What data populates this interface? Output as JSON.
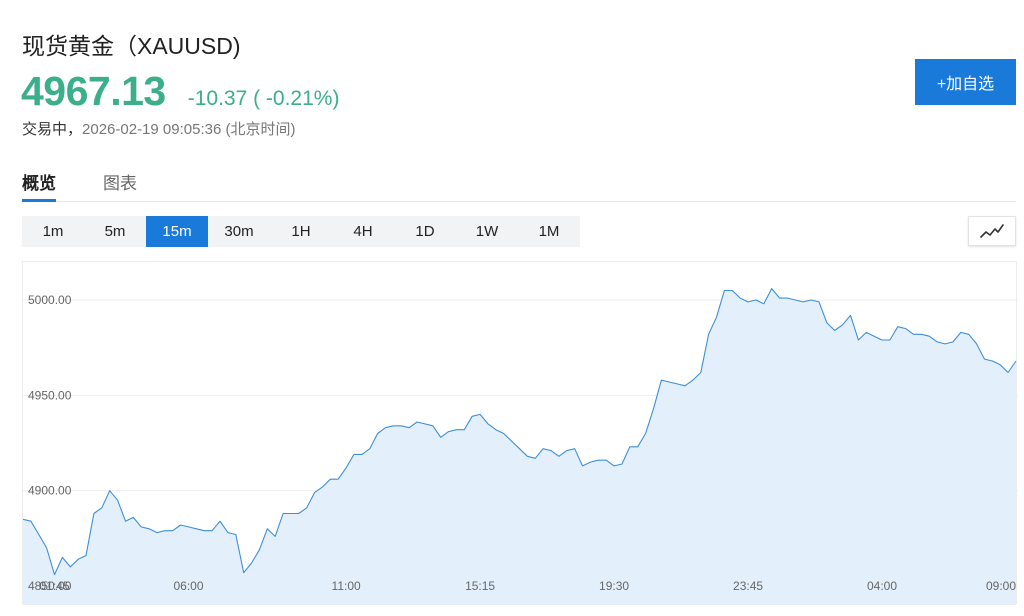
{
  "header": {
    "title": "现货黄金（XAUUSD)",
    "price": "4967.13",
    "change": "-10.37 ( -0.21%)",
    "status": "交易中，",
    "timestamp": "2026-02-19 09:05:36 (北京时间)",
    "watch_button": "+加自选"
  },
  "tabs": [
    {
      "label": "概览",
      "active": true
    },
    {
      "label": "图表",
      "active": false
    }
  ],
  "intervals": [
    {
      "label": "1m",
      "active": false
    },
    {
      "label": "5m",
      "active": false
    },
    {
      "label": "15m",
      "active": true
    },
    {
      "label": "30m",
      "active": false
    },
    {
      "label": "1H",
      "active": false
    },
    {
      "label": "4H",
      "active": false
    },
    {
      "label": "1D",
      "active": false
    },
    {
      "label": "1W",
      "active": false
    },
    {
      "label": "1M",
      "active": false
    }
  ],
  "chart_type_icon": "line-chart-icon",
  "colors": {
    "accent": "#1a7ad9",
    "price_green": "#3aaf8a",
    "line": "#3d8fd8",
    "area": "#e3f0fc"
  },
  "chart_data": {
    "type": "area",
    "y_tick_labels": [
      "5000.00",
      "4950.00",
      "4900.00",
      "4850.00"
    ],
    "y_ticks": [
      5000,
      4950,
      4900,
      4850
    ],
    "ylim": [
      4844,
      5020
    ],
    "x_tick_labels": [
      "01:45",
      "06:00",
      "11:00",
      "15:15",
      "19:30",
      "23:45",
      "04:00",
      "09:00"
    ],
    "x_tick_index": [
      4,
      21,
      41,
      58,
      75,
      92,
      109,
      126
    ],
    "grid": true,
    "values": [
      4885,
      4884,
      4877,
      4870,
      4856,
      4865,
      4860,
      4864,
      4866,
      4888,
      4891,
      4900,
      4895,
      4884,
      4886,
      4881,
      4880,
      4878,
      4879,
      4879,
      4882,
      4881,
      4880,
      4879,
      4879,
      4884,
      4878,
      4877,
      4857,
      4862,
      4869,
      4880,
      4876,
      4888,
      4888,
      4888,
      4891,
      4899,
      4902,
      4906,
      4906,
      4912,
      4919,
      4919,
      4922,
      4930,
      4933,
      4934,
      4934,
      4933,
      4936,
      4935,
      4934,
      4928,
      4931,
      4932,
      4932,
      4939,
      4940,
      4935,
      4932,
      4930,
      4926,
      4922,
      4918,
      4917,
      4922,
      4921,
      4918,
      4921,
      4922,
      4913,
      4915,
      4916,
      4916,
      4913,
      4914,
      4923,
      4923,
      4930,
      4943,
      4958,
      4957,
      4956,
      4955,
      4958,
      4962,
      4982,
      4991,
      5005,
      5005,
      5001,
      4999,
      5000,
      4998,
      5006,
      5001,
      5001,
      5000,
      4999,
      5000,
      4999,
      4988,
      4984,
      4987,
      4992,
      4979,
      4983,
      4981,
      4979,
      4979,
      4986,
      4985,
      4982,
      4982,
      4981,
      4978,
      4977,
      4978,
      4983,
      4982,
      4977,
      4969,
      4968,
      4966,
      4962,
      4968
    ]
  }
}
